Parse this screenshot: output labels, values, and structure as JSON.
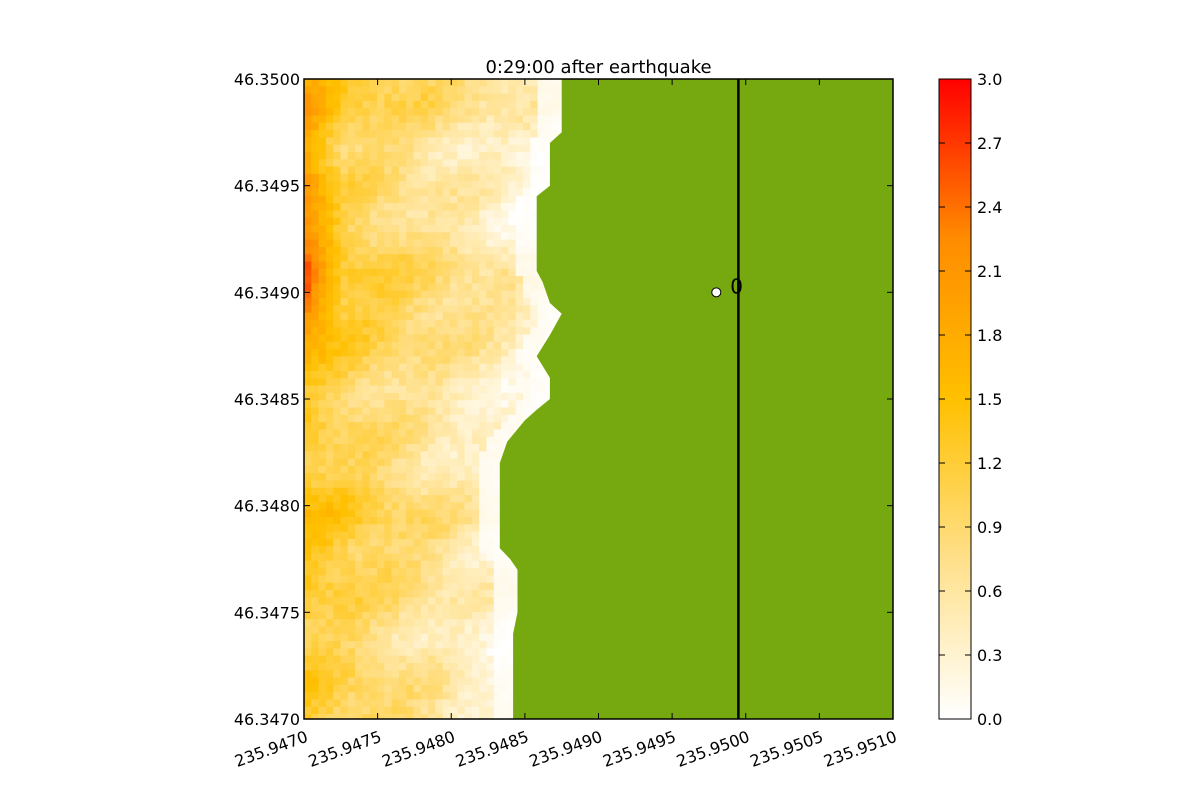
{
  "chart_data": {
    "type": "heatmap",
    "title": "0:29:00 after earthquake",
    "xlabel": "",
    "ylabel": "",
    "xlim": [
      235.947,
      235.951
    ],
    "ylim": [
      46.347,
      46.35
    ],
    "x_ticks": [
      "235.9470",
      "235.9475",
      "235.9480",
      "235.9485",
      "235.9490",
      "235.9495",
      "235.9500",
      "235.9505",
      "235.9510"
    ],
    "x_tick_values": [
      235.947,
      235.9475,
      235.948,
      235.9485,
      235.949,
      235.9495,
      235.95,
      235.9505,
      235.951
    ],
    "y_ticks": [
      "46.3470",
      "46.3475",
      "46.3480",
      "46.3485",
      "46.3490",
      "46.3495",
      "46.3500"
    ],
    "y_tick_values": [
      46.347,
      46.3475,
      46.348,
      46.3485,
      46.349,
      46.3495,
      46.35
    ],
    "x_tick_rotation_deg": -20,
    "grid": false,
    "colorbar": {
      "cmap": [
        "#ffffff",
        "#ffe08a",
        "#ffc000",
        "#ff8c00",
        "#ff0000"
      ],
      "min": 0.0,
      "max": 3.0,
      "ticks": [
        "0.0",
        "0.3",
        "0.6",
        "0.9",
        "1.2",
        "1.5",
        "1.8",
        "2.1",
        "2.4",
        "2.7",
        "3.0"
      ],
      "tick_values": [
        0.0,
        0.3,
        0.6,
        0.9,
        1.2,
        1.5,
        1.8,
        2.1,
        2.4,
        2.7,
        3.0
      ]
    },
    "land_color": "#76a90f",
    "shoreline_x": [
      [
        46.35,
        235.94875
      ],
      [
        46.34975,
        235.94875
      ],
      [
        46.3497,
        235.94867
      ],
      [
        46.3496,
        235.94867
      ],
      [
        46.3495,
        235.94867
      ],
      [
        46.34945,
        235.94858
      ],
      [
        46.3493,
        235.94858
      ],
      [
        46.3491,
        235.94858
      ],
      [
        46.34905,
        235.94862
      ],
      [
        46.34895,
        235.94867
      ],
      [
        46.3489,
        235.94875
      ],
      [
        46.3488,
        235.94867
      ],
      [
        46.3487,
        235.94858
      ],
      [
        46.3486,
        235.94867
      ],
      [
        46.3485,
        235.94867
      ],
      [
        46.34845,
        235.94858
      ],
      [
        46.3484,
        235.9485
      ],
      [
        46.3483,
        235.94838
      ],
      [
        46.3482,
        235.94833
      ],
      [
        46.3481,
        235.94833
      ],
      [
        46.34795,
        235.94833
      ],
      [
        46.3478,
        235.94833
      ],
      [
        46.34775,
        235.9484
      ],
      [
        46.3477,
        235.94845
      ],
      [
        46.3476,
        235.94845
      ],
      [
        46.3475,
        235.94845
      ],
      [
        46.3474,
        235.94842
      ],
      [
        46.3473,
        235.94842
      ],
      [
        46.3472,
        235.94842
      ],
      [
        46.347,
        235.94842
      ]
    ],
    "boundary_line_x": 235.94995,
    "gauge": {
      "label": "0",
      "x": 235.9498,
      "y": 46.349
    }
  }
}
